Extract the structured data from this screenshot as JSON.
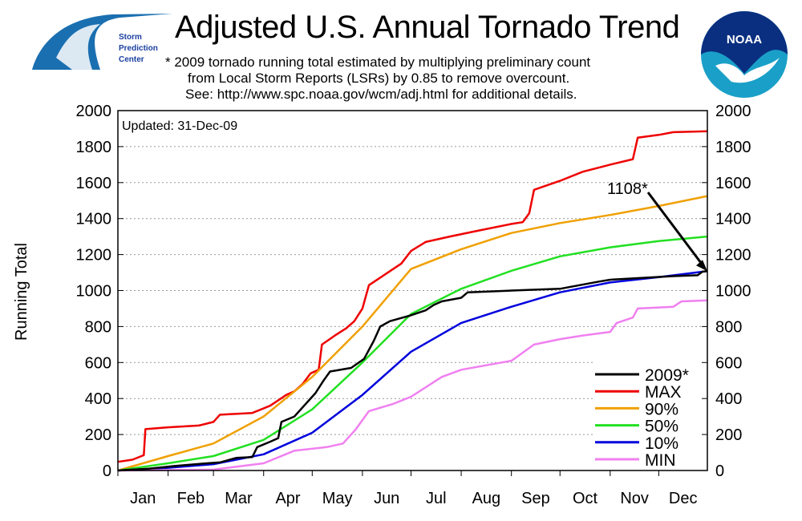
{
  "header": {
    "title": "Adjusted U.S. Annual Tornado Trend",
    "notes": [
      "* 2009 tornado running total estimated by multiplying preliminary count",
      "from Local Storm Reports (LSRs) by 0.85 to remove overcount.",
      "See: http://www.spc.noaa.gov/wcm/adj.html for additional details."
    ],
    "spc_logo_text": [
      "Storm",
      "Prediction",
      "Center"
    ],
    "noaa_logo_text": "NOAA"
  },
  "chart_data": {
    "type": "line",
    "title": "Adjusted U.S. Annual Tornado Trend",
    "ylabel": "Running Total",
    "xlabel": "",
    "ylim": [
      0,
      2000
    ],
    "xlim": [
      "2009-01-01",
      "2009-12-31"
    ],
    "yticks": [
      0,
      200,
      400,
      600,
      800,
      1000,
      1200,
      1400,
      1600,
      1800,
      2000
    ],
    "xtick_labels": [
      "Jan",
      "Feb",
      "Mar",
      "Apr",
      "May",
      "Jun",
      "Jul",
      "Aug",
      "Sep",
      "Oct",
      "Nov",
      "Dec"
    ],
    "grid": "horizontal dotted",
    "legend_position": "bottom-right",
    "updated": "Updated: 31-Dec-09",
    "annotation": {
      "text": "1108*",
      "value": 1108,
      "date": "2009-12-31"
    },
    "series": [
      {
        "name": "2009*",
        "color": "#000000",
        "points": [
          [
            "2009-01-01",
            0
          ],
          [
            "2009-01-20",
            10
          ],
          [
            "2009-02-05",
            25
          ],
          [
            "2009-02-25",
            40
          ],
          [
            "2009-03-05",
            45
          ],
          [
            "2009-03-15",
            70
          ],
          [
            "2009-03-25",
            75
          ],
          [
            "2009-03-28",
            130
          ],
          [
            "2009-04-05",
            160
          ],
          [
            "2009-04-10",
            180
          ],
          [
            "2009-04-12",
            270
          ],
          [
            "2009-04-20",
            300
          ],
          [
            "2009-04-27",
            370
          ],
          [
            "2009-05-03",
            430
          ],
          [
            "2009-05-08",
            500
          ],
          [
            "2009-05-12",
            550
          ],
          [
            "2009-05-25",
            570
          ],
          [
            "2009-06-02",
            620
          ],
          [
            "2009-06-08",
            720
          ],
          [
            "2009-06-12",
            800
          ],
          [
            "2009-06-18",
            830
          ],
          [
            "2009-06-30",
            860
          ],
          [
            "2009-07-10",
            890
          ],
          [
            "2009-07-15",
            920
          ],
          [
            "2009-07-20",
            940
          ],
          [
            "2009-08-01",
            960
          ],
          [
            "2009-08-05",
            990
          ],
          [
            "2009-09-01",
            1000
          ],
          [
            "2009-10-01",
            1010
          ],
          [
            "2009-10-25",
            1050
          ],
          [
            "2009-11-01",
            1060
          ],
          [
            "2009-12-10",
            1080
          ],
          [
            "2009-12-25",
            1085
          ],
          [
            "2009-12-28",
            1105
          ],
          [
            "2009-12-31",
            1108
          ]
        ]
      },
      {
        "name": "MAX",
        "color": "#ee0000",
        "points": [
          [
            "2009-01-01",
            48
          ],
          [
            "2009-01-10",
            60
          ],
          [
            "2009-01-17",
            85
          ],
          [
            "2009-01-18",
            230
          ],
          [
            "2009-02-01",
            240
          ],
          [
            "2009-02-20",
            250
          ],
          [
            "2009-03-01",
            270
          ],
          [
            "2009-03-05",
            310
          ],
          [
            "2009-03-25",
            320
          ],
          [
            "2009-04-05",
            360
          ],
          [
            "2009-04-15",
            420
          ],
          [
            "2009-04-20",
            440
          ],
          [
            "2009-04-25",
            480
          ],
          [
            "2009-04-30",
            540
          ],
          [
            "2009-05-05",
            560
          ],
          [
            "2009-05-07",
            700
          ],
          [
            "2009-05-15",
            750
          ],
          [
            "2009-05-22",
            790
          ],
          [
            "2009-05-27",
            830
          ],
          [
            "2009-06-01",
            900
          ],
          [
            "2009-06-05",
            1030
          ],
          [
            "2009-06-15",
            1090
          ],
          [
            "2009-06-25",
            1150
          ],
          [
            "2009-07-01",
            1220
          ],
          [
            "2009-07-10",
            1270
          ],
          [
            "2009-07-25",
            1300
          ],
          [
            "2009-08-10",
            1330
          ],
          [
            "2009-09-01",
            1370
          ],
          [
            "2009-09-08",
            1380
          ],
          [
            "2009-09-12",
            1430
          ],
          [
            "2009-09-15",
            1560
          ],
          [
            "2009-10-01",
            1610
          ],
          [
            "2009-10-15",
            1660
          ],
          [
            "2009-11-01",
            1700
          ],
          [
            "2009-11-15",
            1730
          ],
          [
            "2009-11-18",
            1850
          ],
          [
            "2009-12-01",
            1865
          ],
          [
            "2009-12-10",
            1880
          ],
          [
            "2009-12-31",
            1885
          ]
        ]
      },
      {
        "name": "90%",
        "color": "#f0a000",
        "points": [
          [
            "2009-01-01",
            0
          ],
          [
            "2009-02-01",
            80
          ],
          [
            "2009-03-01",
            150
          ],
          [
            "2009-04-01",
            300
          ],
          [
            "2009-05-01",
            520
          ],
          [
            "2009-06-01",
            800
          ],
          [
            "2009-07-01",
            1120
          ],
          [
            "2009-08-01",
            1230
          ],
          [
            "2009-09-01",
            1320
          ],
          [
            "2009-10-01",
            1375
          ],
          [
            "2009-11-01",
            1420
          ],
          [
            "2009-12-01",
            1470
          ],
          [
            "2009-12-31",
            1525
          ]
        ]
      },
      {
        "name": "50%",
        "color": "#22e022",
        "points": [
          [
            "2009-01-01",
            0
          ],
          [
            "2009-02-01",
            40
          ],
          [
            "2009-03-01",
            80
          ],
          [
            "2009-04-01",
            170
          ],
          [
            "2009-05-01",
            340
          ],
          [
            "2009-06-01",
            600
          ],
          [
            "2009-07-01",
            870
          ],
          [
            "2009-08-01",
            1010
          ],
          [
            "2009-09-01",
            1110
          ],
          [
            "2009-10-01",
            1190
          ],
          [
            "2009-11-01",
            1240
          ],
          [
            "2009-12-01",
            1275
          ],
          [
            "2009-12-31",
            1300
          ]
        ]
      },
      {
        "name": "10%",
        "color": "#0000dd",
        "points": [
          [
            "2009-01-01",
            0
          ],
          [
            "2009-02-01",
            15
          ],
          [
            "2009-03-01",
            35
          ],
          [
            "2009-04-01",
            90
          ],
          [
            "2009-05-01",
            210
          ],
          [
            "2009-06-01",
            420
          ],
          [
            "2009-07-01",
            660
          ],
          [
            "2009-08-01",
            820
          ],
          [
            "2009-09-01",
            910
          ],
          [
            "2009-10-01",
            990
          ],
          [
            "2009-11-01",
            1045
          ],
          [
            "2009-12-01",
            1075
          ],
          [
            "2009-12-31",
            1108
          ]
        ]
      },
      {
        "name": "MIN",
        "color": "#f080f0",
        "points": [
          [
            "2009-01-01",
            0
          ],
          [
            "2009-03-01",
            5
          ],
          [
            "2009-04-01",
            40
          ],
          [
            "2009-04-20",
            110
          ],
          [
            "2009-05-10",
            130
          ],
          [
            "2009-05-20",
            150
          ],
          [
            "2009-05-28",
            230
          ],
          [
            "2009-06-05",
            330
          ],
          [
            "2009-06-20",
            370
          ],
          [
            "2009-07-01",
            410
          ],
          [
            "2009-07-20",
            520
          ],
          [
            "2009-08-01",
            560
          ],
          [
            "2009-09-01",
            610
          ],
          [
            "2009-09-15",
            700
          ],
          [
            "2009-10-01",
            730
          ],
          [
            "2009-10-15",
            750
          ],
          [
            "2009-11-01",
            770
          ],
          [
            "2009-11-05",
            820
          ],
          [
            "2009-11-15",
            850
          ],
          [
            "2009-11-18",
            900
          ],
          [
            "2009-12-10",
            910
          ],
          [
            "2009-12-15",
            940
          ],
          [
            "2009-12-31",
            945
          ]
        ]
      }
    ]
  }
}
